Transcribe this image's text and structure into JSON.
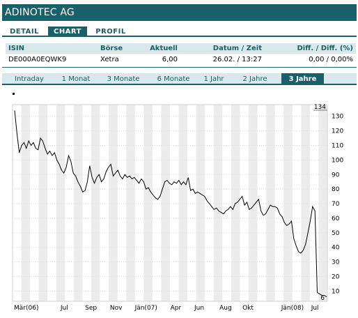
{
  "title": "ADINOTEC AG",
  "tabs": [
    {
      "label": "DETAIL",
      "active": false
    },
    {
      "label": "CHART",
      "active": true
    },
    {
      "label": "PROFIL",
      "active": false
    }
  ],
  "table": {
    "headers": [
      "ISIN",
      "Börse",
      "Aktuell",
      "Datum / Zeit",
      "Diff. / Diff. (%)"
    ],
    "row": [
      "DE000A0EQWK9",
      "Xetra",
      "6,00",
      "26.02. / 13:27",
      "0,00 / 0,00%"
    ]
  },
  "ranges": [
    {
      "label": "Intraday",
      "active": false
    },
    {
      "label": "1 Monat",
      "active": false
    },
    {
      "label": "3 Monate",
      "active": false
    },
    {
      "label": "6 Monate",
      "active": false
    },
    {
      "label": "1 Jahr",
      "active": false
    },
    {
      "label": "2 Jahre",
      "active": false
    },
    {
      "label": "3 Jahre",
      "active": true
    }
  ],
  "colors": {
    "accent": "#1a5f6a",
    "header_bg": "#d9e8ea",
    "band": "#ececec"
  },
  "chart_data": {
    "type": "line",
    "max_label": "134",
    "min_label": "6",
    "ylim": [
      3,
      138
    ],
    "yticks": [
      10,
      20,
      30,
      40,
      50,
      60,
      70,
      80,
      90,
      100,
      110,
      120,
      130
    ],
    "xticks": [
      "Mär(06)",
      "Jul",
      "Sep",
      "Nov",
      "Jän(07)",
      "Apr",
      "Jun",
      "Aug",
      "Okt",
      "Jän(08)",
      "Jul"
    ],
    "grid": true,
    "series": [
      {
        "values": [
          134,
          118,
          105,
          110,
          112,
          108,
          113,
          110,
          112,
          108,
          107,
          115,
          113,
          108,
          104,
          106,
          103,
          105,
          100,
          97,
          93,
          91,
          95,
          103,
          99,
          91,
          89,
          85,
          82,
          78,
          79,
          85,
          96,
          88,
          84,
          88,
          90,
          85,
          87,
          92,
          95,
          97,
          89,
          91,
          93,
          89,
          87,
          90,
          88,
          89,
          87,
          88,
          86,
          84,
          87,
          85,
          80,
          81,
          78,
          76,
          74,
          73,
          75,
          80,
          85,
          86,
          84,
          83,
          85,
          84,
          86,
          83,
          85,
          83,
          88,
          79,
          80,
          77,
          78,
          77,
          76,
          75,
          72,
          70,
          68,
          66,
          67,
          65,
          64,
          63,
          65,
          66,
          68,
          66,
          70,
          71,
          73,
          75,
          69,
          71,
          66,
          67,
          69,
          71,
          73,
          65,
          62,
          63,
          66,
          69,
          68,
          68,
          67,
          63,
          61,
          57,
          55,
          56,
          58,
          46,
          41,
          37,
          36,
          38,
          42,
          50,
          58,
          68,
          65,
          9,
          8,
          7,
          7,
          6
        ]
      }
    ]
  }
}
